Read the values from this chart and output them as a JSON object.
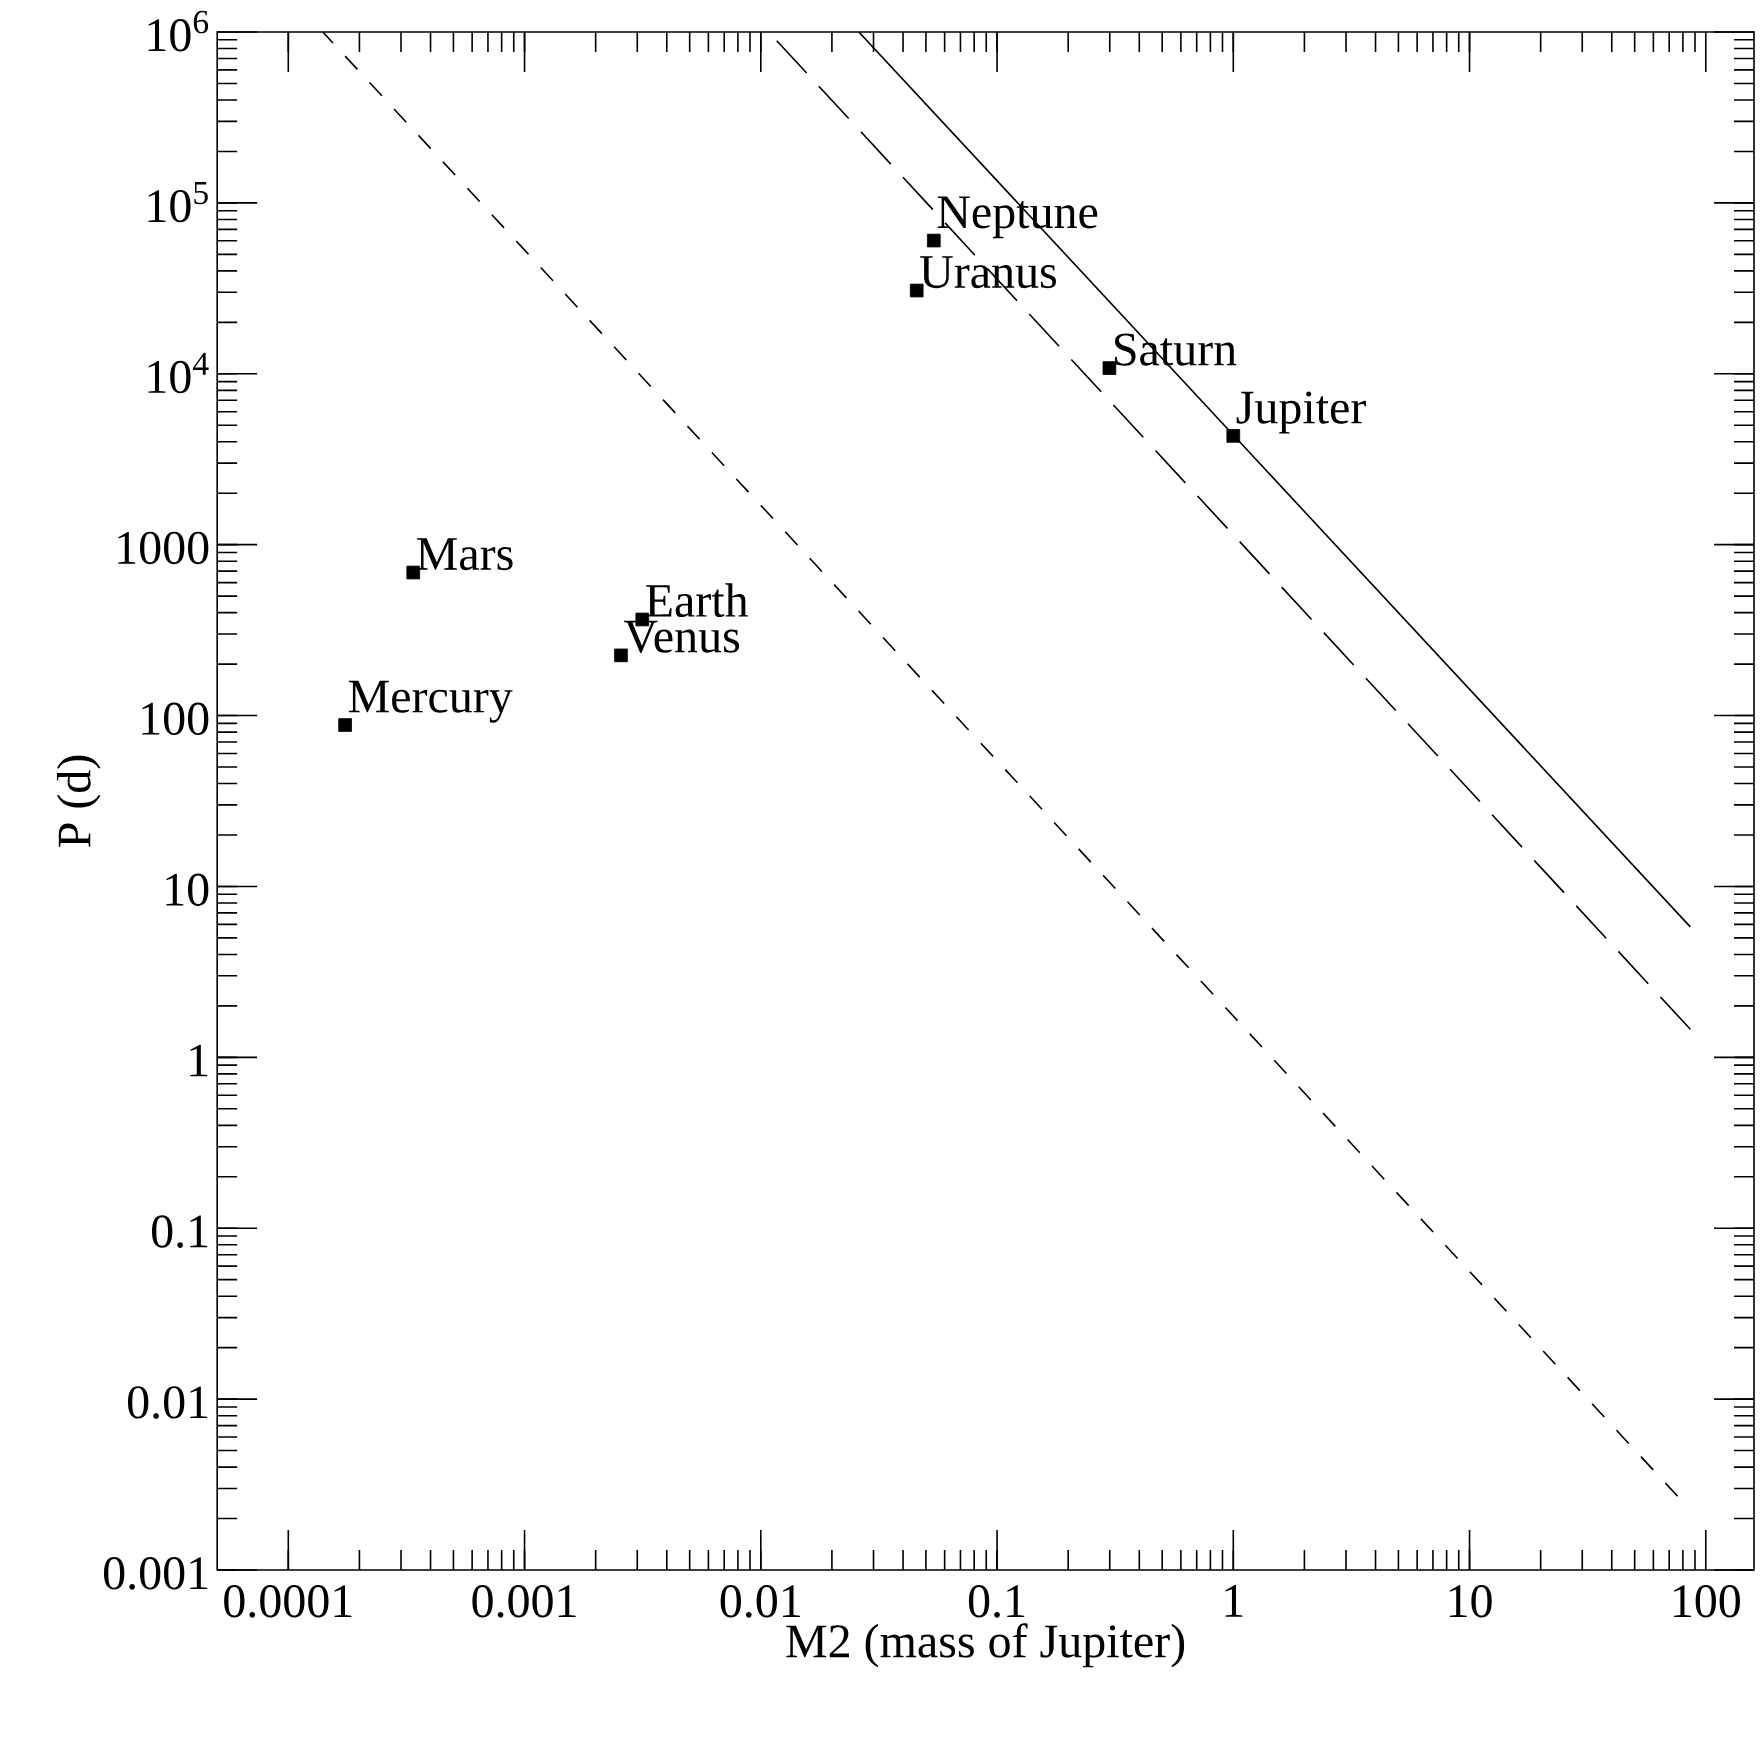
{
  "chart_data": {
    "type": "scatter",
    "xlabel": "M2 (mass of Jupiter)",
    "ylabel": "P (d)",
    "log": "xy",
    "xlim": [
      5e-05,
      160
    ],
    "ylim": [
      0.001,
      1000000
    ],
    "xticks": [
      0.0001,
      0.001,
      0.01,
      0.1,
      1,
      10,
      100
    ],
    "yticks": [
      0.001,
      0.01,
      0.1,
      1,
      10,
      100,
      1000,
      {
        "value": 10000,
        "label": "10$^{4}$"
      },
      {
        "value": 100000,
        "label": "10$^{5}$"
      },
      {
        "value": 1000000,
        "label": "10$^{6}$"
      }
    ],
    "series": [
      {
        "type": "scatter",
        "color": "#000000",
        "marker": "square",
        "x": [
          0.000174,
          0.00256,
          0.00315,
          0.000338,
          1,
          0.299,
          0.0457,
          0.054
        ],
        "values": [
          88,
          225,
          365,
          687,
          4330,
          10800,
          30700,
          60200
        ]
      },
      {
        "type": "line",
        "color": "#000000",
        "marker": "none",
        "line_style": "solid",
        "x": [
          0.026,
          86
        ],
        "values": [
          1000000,
          5.8
        ]
      },
      {
        "type": "line",
        "color": "#000000",
        "marker": "none",
        "line_style": "dashed",
        "x": [
          0.0108,
          86
        ],
        "values": [
          1000000,
          1.46
        ]
      },
      {
        "type": "line",
        "color": "#000000",
        "marker": "none",
        "line_style": "dashed",
        "x": [
          0.00014,
          76
        ],
        "values": [
          1000000,
          0.0027
        ]
      }
    ],
    "annotations": [
      {
        "text": "Mercury",
        "x": 0.000174,
        "y": 88
      },
      {
        "text": "Venus",
        "x": 0.00256,
        "y": 225
      },
      {
        "text": "Earth",
        "x": 0.00315,
        "y": 365
      },
      {
        "text": "Mars",
        "x": 0.000338,
        "y": 687
      },
      {
        "text": "Jupiter",
        "x": 1,
        "y": 4330
      },
      {
        "text": "Saturn",
        "x": 0.299,
        "y": 10800
      },
      {
        "text": "Uranus",
        "x": 0.0457,
        "y": 30700
      },
      {
        "text": "Neptune",
        "x": 0.054,
        "y": 60200
      }
    ]
  }
}
